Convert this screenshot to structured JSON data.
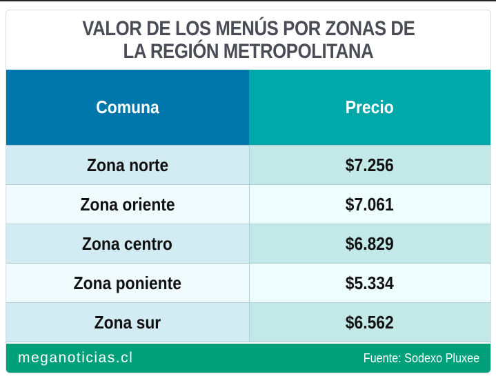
{
  "title": {
    "line1": "VALOR DE LOS MENÚS POR ZONAS DE",
    "line2": "LA REGIÓN METROPOLITANA"
  },
  "chart_data": {
    "type": "table",
    "title": "VALOR DE LOS MENÚS POR ZONAS DE LA REGIÓN METROPOLITANA",
    "columns": [
      "Comuna",
      "Precio"
    ],
    "rows": [
      {
        "comuna": "Zona norte",
        "precio": "$7.256",
        "value": 7256
      },
      {
        "comuna": "Zona oriente",
        "precio": "$7.061",
        "value": 7061
      },
      {
        "comuna": "Zona centro",
        "precio": "$6.829",
        "value": 6829
      },
      {
        "comuna": "Zona poniente",
        "precio": "$5.334",
        "value": 5334
      },
      {
        "comuna": "Zona sur",
        "precio": "$6.562",
        "value": 6562
      }
    ]
  },
  "footer": {
    "brand": "meganoticias.cl",
    "source": "Fuente: Sodexo Pluxee"
  },
  "colors": {
    "header_left": "#0077aa",
    "header_right": "#00a9a9",
    "footer": "#00a07a",
    "title": "#4a4d55"
  }
}
